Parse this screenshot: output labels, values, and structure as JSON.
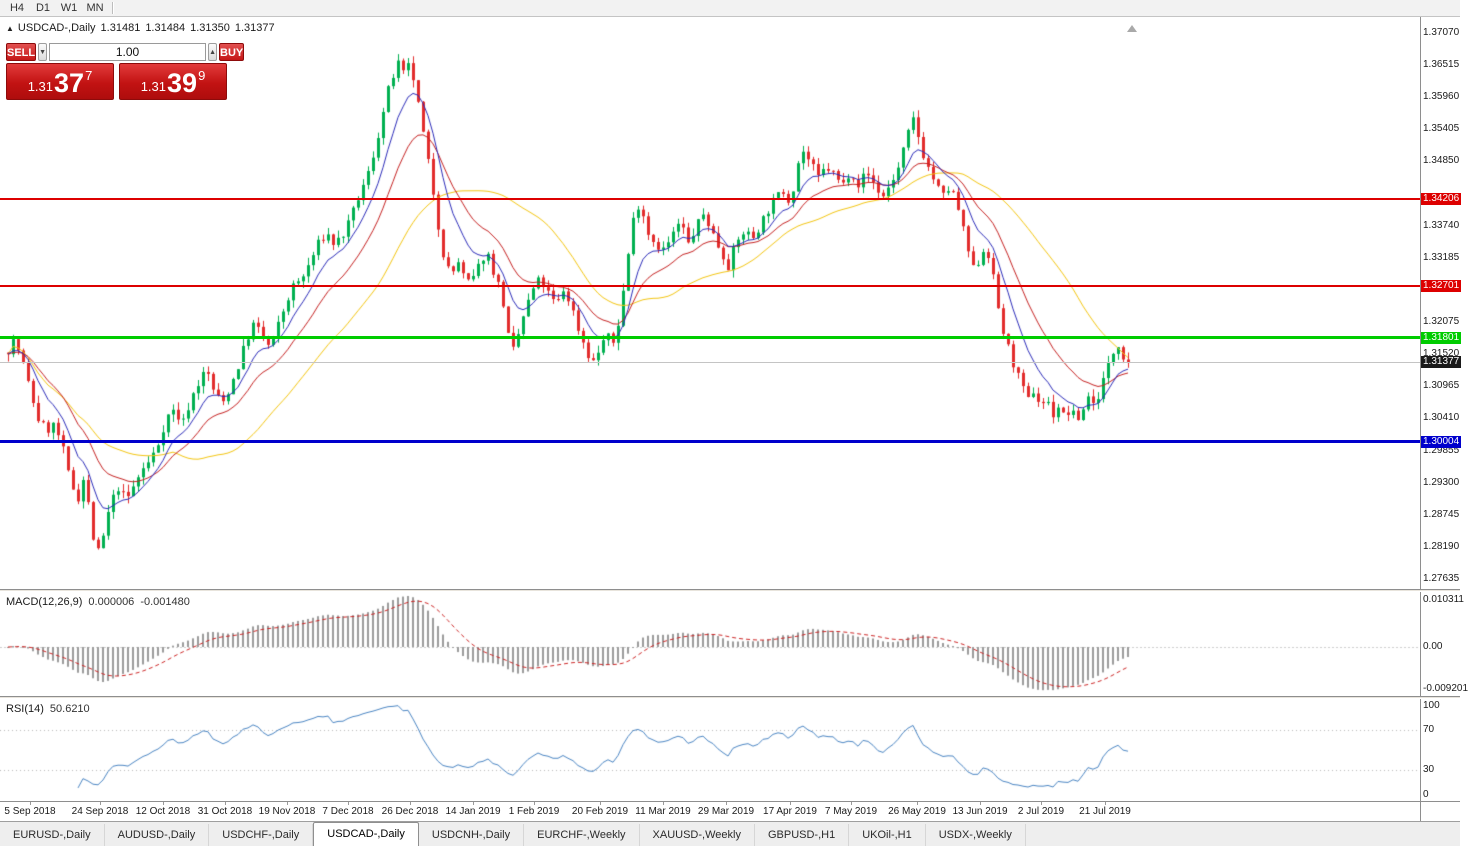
{
  "toolbar": {
    "timeframes": [
      "H4",
      "D1",
      "W1",
      "MN"
    ]
  },
  "chart_header": {
    "collapse_icon": "▲",
    "symbol": "USDCAD-,Daily",
    "open": "1.31481",
    "high": "1.31484",
    "low": "1.31350",
    "close": "1.31377"
  },
  "trade_panel": {
    "sell_label": "SELL",
    "buy_label": "BUY",
    "volume": "1.00",
    "spin_down": "▼",
    "spin_up": "▲",
    "sell_price": {
      "prefix": "1.31",
      "big": "37",
      "sup": "7"
    },
    "buy_price": {
      "prefix": "1.31",
      "big": "39",
      "sup": "9"
    }
  },
  "macd_header": {
    "title": "MACD(12,26,9)",
    "value": "0.000006",
    "signal": "-0.001480"
  },
  "rsi_header": {
    "title": "RSI(14)",
    "value": "50.6210"
  },
  "tabs": [
    {
      "label": "EURUSD-,Daily",
      "active": false
    },
    {
      "label": "AUDUSD-,Daily",
      "active": false
    },
    {
      "label": "USDCHF-,Daily",
      "active": false
    },
    {
      "label": "USDCAD-,Daily",
      "active": true
    },
    {
      "label": "USDCNH-,Daily",
      "active": false
    },
    {
      "label": "EURCHF-,Weekly",
      "active": false
    },
    {
      "label": "XAUUSD-,Weekly",
      "active": false
    },
    {
      "label": "GBPUSD-,H1",
      "active": false
    },
    {
      "label": "UKOil-,H1",
      "active": false
    },
    {
      "label": "USDX-,Weekly",
      "active": false
    }
  ],
  "chart_data": {
    "type": "candlestick",
    "symbol": "USDCAD-",
    "timeframe": "Daily",
    "price_range": {
      "min": 1.27462,
      "max": 1.37347
    },
    "y_ticks": [
      1.3707,
      1.36515,
      1.3596,
      1.35405,
      1.3485,
      1.3374,
      1.33185,
      1.32075,
      1.3152,
      1.30965,
      1.3041,
      1.29855,
      1.293,
      1.28745,
      1.2819,
      1.27635
    ],
    "levels": [
      {
        "name": "resistance-line-upper",
        "price": 1.34206,
        "label": "1.34206",
        "color": "#dd0000",
        "width": 2
      },
      {
        "name": "resistance-line-lower",
        "price": 1.32701,
        "label": "1.32701",
        "color": "#dd0000",
        "width": 2
      },
      {
        "name": "support-line-green",
        "price": 1.31801,
        "label": "1.31801",
        "color": "#00cc00",
        "width": 3
      },
      {
        "name": "support-line-blue",
        "price": 1.30004,
        "label": "1.30004",
        "color": "#0000cc",
        "width": 3
      }
    ],
    "current_price": {
      "price": 1.31377,
      "label": "1.31377",
      "line_color": "#c4c4c4",
      "label_bg": "#1a1a1a"
    },
    "colors": {
      "up": "#00b050",
      "down": "#e22c2c"
    },
    "candles": {
      "first_x": 8,
      "spacing": 5,
      "count": 225,
      "noise_seed": 7,
      "close_noise": 0.0018,
      "wick": 0.0013
    },
    "price_path": [
      [
        6,
        1.3155
      ],
      [
        14,
        1.3178
      ],
      [
        22,
        1.314
      ],
      [
        30,
        1.3088
      ],
      [
        38,
        1.304
      ],
      [
        46,
        1.302
      ],
      [
        54,
        1.303
      ],
      [
        62,
        1.2992
      ],
      [
        70,
        1.293
      ],
      [
        78,
        1.2905
      ],
      [
        84,
        1.2942
      ],
      [
        90,
        1.2868
      ],
      [
        96,
        1.28
      ],
      [
        102,
        1.2828
      ],
      [
        110,
        1.2892
      ],
      [
        118,
        1.2922
      ],
      [
        126,
        1.2898
      ],
      [
        134,
        1.2926
      ],
      [
        142,
        1.2952
      ],
      [
        150,
        1.2968
      ],
      [
        158,
        1.2998
      ],
      [
        166,
        1.3042
      ],
      [
        174,
        1.3056
      ],
      [
        182,
        1.303
      ],
      [
        190,
        1.3072
      ],
      [
        198,
        1.3102
      ],
      [
        206,
        1.3126
      ],
      [
        214,
        1.3086
      ],
      [
        222,
        1.3066
      ],
      [
        230,
        1.3096
      ],
      [
        238,
        1.3132
      ],
      [
        246,
        1.3176
      ],
      [
        254,
        1.3206
      ],
      [
        262,
        1.3182
      ],
      [
        270,
        1.3162
      ],
      [
        278,
        1.3202
      ],
      [
        286,
        1.3242
      ],
      [
        294,
        1.3272
      ],
      [
        302,
        1.3282
      ],
      [
        310,
        1.3312
      ],
      [
        318,
        1.3342
      ],
      [
        326,
        1.3362
      ],
      [
        334,
        1.3342
      ],
      [
        342,
        1.3356
      ],
      [
        350,
        1.3382
      ],
      [
        358,
        1.3422
      ],
      [
        366,
        1.3452
      ],
      [
        374,
        1.3502
      ],
      [
        382,
        1.3562
      ],
      [
        390,
        1.3622
      ],
      [
        398,
        1.3652
      ],
      [
        404,
        1.3632
      ],
      [
        410,
        1.3655
      ],
      [
        416,
        1.3602
      ],
      [
        422,
        1.3542
      ],
      [
        428,
        1.3482
      ],
      [
        434,
        1.3422
      ],
      [
        440,
        1.3352
      ],
      [
        446,
        1.3302
      ],
      [
        452,
        1.3292
      ],
      [
        458,
        1.3312
      ],
      [
        464,
        1.3282
      ],
      [
        470,
        1.3272
      ],
      [
        478,
        1.3302
      ],
      [
        486,
        1.3332
      ],
      [
        494,
        1.3292
      ],
      [
        502,
        1.3252
      ],
      [
        508,
        1.3182
      ],
      [
        514,
        1.3152
      ],
      [
        520,
        1.3202
      ],
      [
        526,
        1.3232
      ],
      [
        532,
        1.3262
      ],
      [
        540,
        1.3282
      ],
      [
        548,
        1.3256
      ],
      [
        556,
        1.3236
      ],
      [
        564,
        1.3266
      ],
      [
        572,
        1.323
      ],
      [
        580,
        1.3186
      ],
      [
        588,
        1.3152
      ],
      [
        594,
        1.3136
      ],
      [
        600,
        1.3166
      ],
      [
        606,
        1.3186
      ],
      [
        612,
        1.3166
      ],
      [
        618,
        1.3206
      ],
      [
        624,
        1.3272
      ],
      [
        630,
        1.3352
      ],
      [
        636,
        1.3416
      ],
      [
        642,
        1.34
      ],
      [
        648,
        1.3362
      ],
      [
        656,
        1.3342
      ],
      [
        664,
        1.3332
      ],
      [
        672,
        1.3356
      ],
      [
        680,
        1.3382
      ],
      [
        688,
        1.3342
      ],
      [
        696,
        1.3372
      ],
      [
        704,
        1.3396
      ],
      [
        712,
        1.3362
      ],
      [
        720,
        1.3332
      ],
      [
        728,
        1.3306
      ],
      [
        736,
        1.3342
      ],
      [
        744,
        1.3366
      ],
      [
        752,
        1.3352
      ],
      [
        760,
        1.3376
      ],
      [
        768,
        1.3402
      ],
      [
        776,
        1.3422
      ],
      [
        784,
        1.3436
      ],
      [
        790,
        1.3412
      ],
      [
        796,
        1.3472
      ],
      [
        802,
        1.3506
      ],
      [
        810,
        1.3482
      ],
      [
        818,
        1.3456
      ],
      [
        826,
        1.3476
      ],
      [
        834,
        1.3462
      ],
      [
        842,
        1.3442
      ],
      [
        850,
        1.3472
      ],
      [
        858,
        1.3446
      ],
      [
        866,
        1.3466
      ],
      [
        874,
        1.3446
      ],
      [
        882,
        1.3422
      ],
      [
        890,
        1.3446
      ],
      [
        898,
        1.3472
      ],
      [
        906,
        1.3522
      ],
      [
        914,
        1.3562
      ],
      [
        920,
        1.3512
      ],
      [
        926,
        1.3482
      ],
      [
        934,
        1.3452
      ],
      [
        942,
        1.3422
      ],
      [
        950,
        1.3442
      ],
      [
        958,
        1.3402
      ],
      [
        966,
        1.3342
      ],
      [
        974,
        1.3292
      ],
      [
        980,
        1.3322
      ],
      [
        986,
        1.3342
      ],
      [
        992,
        1.3292
      ],
      [
        998,
        1.3232
      ],
      [
        1004,
        1.3182
      ],
      [
        1010,
        1.3152
      ],
      [
        1016,
        1.3122
      ],
      [
        1022,
        1.3092
      ],
      [
        1028,
        1.3072
      ],
      [
        1034,
        1.3092
      ],
      [
        1040,
        1.3062
      ],
      [
        1046,
        1.3076
      ],
      [
        1052,
        1.3046
      ],
      [
        1058,
        1.3062
      ],
      [
        1064,
        1.3042
      ],
      [
        1070,
        1.3056
      ],
      [
        1076,
        1.3036
      ],
      [
        1082,
        1.3052
      ],
      [
        1088,
        1.3082
      ],
      [
        1094,
        1.3062
      ],
      [
        1100,
        1.3092
      ],
      [
        1106,
        1.3122
      ],
      [
        1112,
        1.3152
      ],
      [
        1118,
        1.3172
      ],
      [
        1124,
        1.3146
      ],
      [
        1128,
        1.3138
      ]
    ],
    "moving_averages": [
      {
        "type": "sma",
        "period": 34,
        "color": "#f2c40f"
      },
      {
        "type": "ema",
        "period": 17,
        "color": "#c41f1f"
      },
      {
        "type": "ema",
        "period": 8,
        "color": "#2a2ab8"
      }
    ],
    "x_dates": [
      {
        "label": "5 Sep 2018",
        "x": 30
      },
      {
        "label": "24 Sep 2018",
        "x": 100
      },
      {
        "label": "12 Oct 2018",
        "x": 163
      },
      {
        "label": "31 Oct 2018",
        "x": 225
      },
      {
        "label": "19 Nov 2018",
        "x": 287
      },
      {
        "label": "7 Dec 2018",
        "x": 348
      },
      {
        "label": "26 Dec 2018",
        "x": 410
      },
      {
        "label": "14 Jan 2019",
        "x": 473
      },
      {
        "label": "1 Feb 2019",
        "x": 534
      },
      {
        "label": "20 Feb 2019",
        "x": 600
      },
      {
        "label": "11 Mar 2019",
        "x": 663
      },
      {
        "label": "29 Mar 2019",
        "x": 726
      },
      {
        "label": "17 Apr 2019",
        "x": 790
      },
      {
        "label": "7 May 2019",
        "x": 851
      },
      {
        "label": "26 May 2019",
        "x": 917
      },
      {
        "label": "13 Jun 2019",
        "x": 980
      },
      {
        "label": "2 Jul 2019",
        "x": 1041
      },
      {
        "label": "21 Jul 2019",
        "x": 1105
      }
    ],
    "macd": {
      "params": "12,26,9",
      "value": 6e-06,
      "signal_value": -0.00148,
      "bar_color": "#9b9b9b",
      "signal_color": "#cc2424",
      "axis_labels": [
        {
          "label": "0.010311",
          "value": 0.010311
        },
        {
          "label": "0.00",
          "value": 0
        },
        {
          "label": "-0.009201",
          "value": -0.009201
        }
      ],
      "scale": {
        "top_value": 0.012066,
        "bottom_value": -0.010751
      }
    },
    "rsi": {
      "period": 14,
      "value": 50.621,
      "color": "#4984c2",
      "levels": [
        70,
        30
      ],
      "axis_labels": [
        100,
        70,
        30,
        0
      ]
    }
  }
}
